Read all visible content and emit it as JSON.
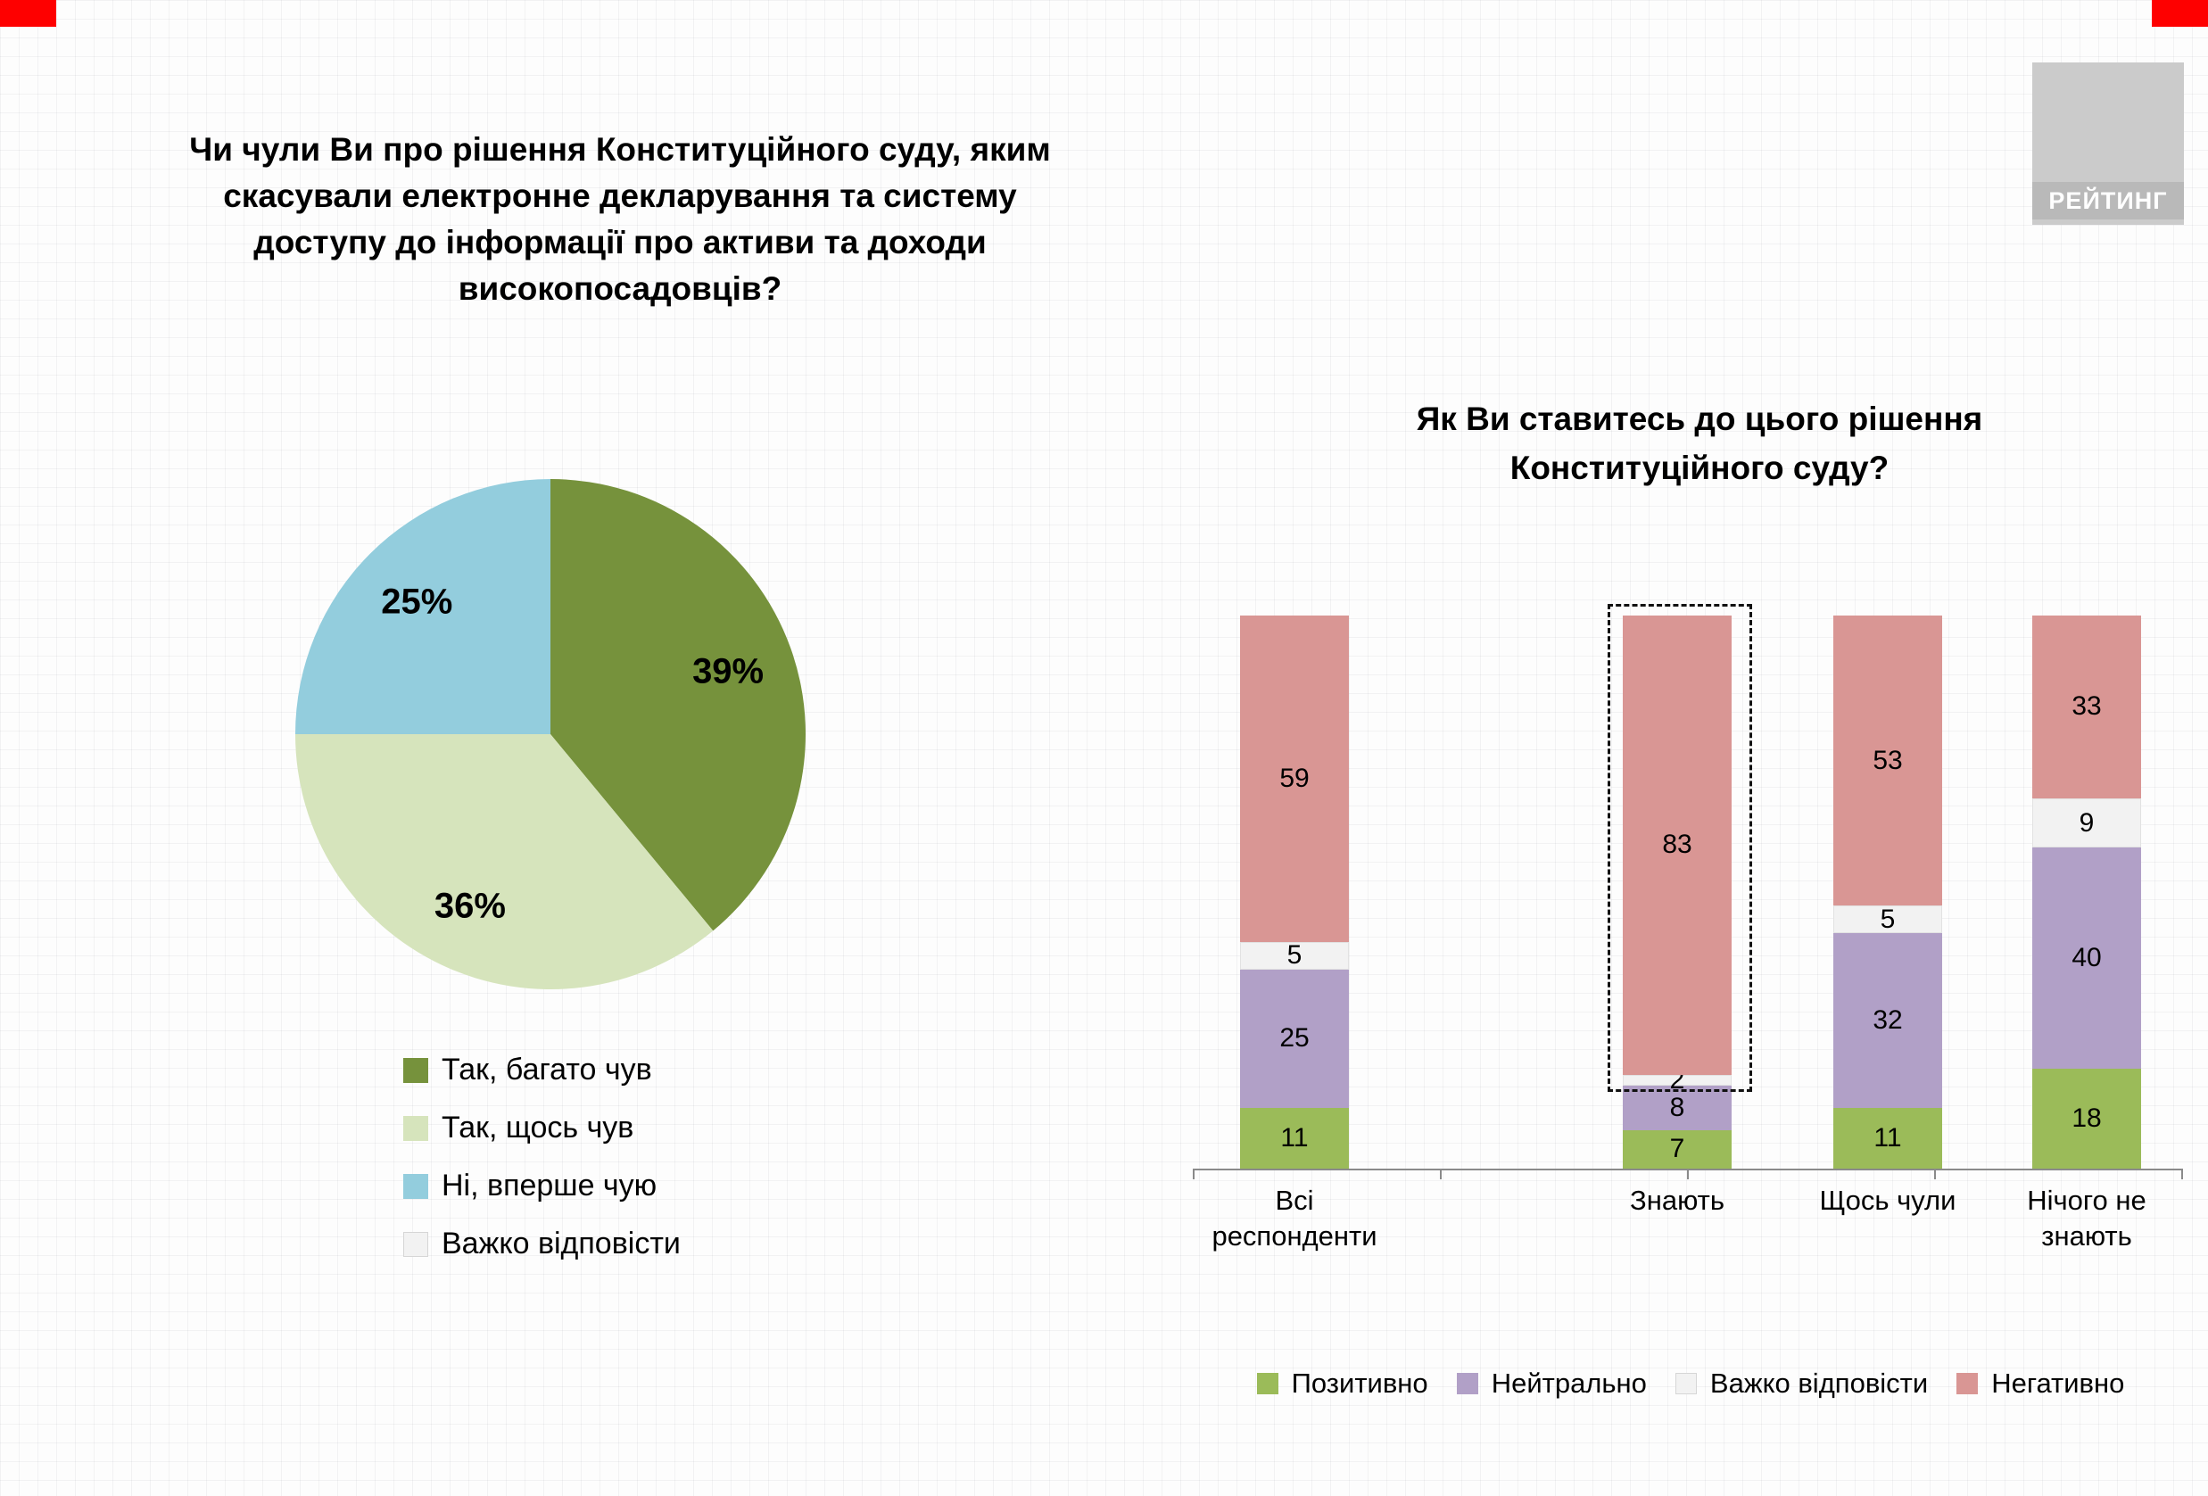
{
  "logo": {
    "text": "РЕЙТИНГ"
  },
  "chart_data": [
    {
      "type": "pie",
      "title": "Чи чули Ви про рішення Конституційного суду, яким скасували електронне декларування та систему доступу до інформації про активи та доходи високопосадовців?",
      "title_lines": [
        "Чи чули Ви про рішення Конституційного суду, яким",
        "скасували електронне декларування та систему",
        "доступу до інформації про активи та доходи",
        "високопосадовців?"
      ],
      "labels": [
        "Так, багато чув",
        "Так, щось чув",
        "Ні, вперше чую",
        "Важко відповісти"
      ],
      "values": [
        39,
        36,
        25,
        0
      ],
      "colors": [
        "#76923c",
        "#d6e4bc",
        "#93cddd",
        "#f2f2f2"
      ],
      "start_angle": "top",
      "direction": "clockwise",
      "legend_position": "bottom-left"
    },
    {
      "type": "bar",
      "stacked": true,
      "title": "Як Ви ставитесь до цього рішення Конституційного суду?",
      "title_lines": [
        "Як Ви ставитесь до цього рішення",
        "Конституційного суду?"
      ],
      "categories": [
        "Всі респонденти",
        "Знають",
        "Щось чули",
        "Нічого не знають"
      ],
      "series": [
        {
          "name": "Позитивно",
          "color": "#9bbb59",
          "values": [
            11,
            7,
            11,
            18
          ]
        },
        {
          "name": "Нейтрально",
          "color": "#b1a0c7",
          "values": [
            25,
            8,
            32,
            40
          ]
        },
        {
          "name": "Важко відповісти",
          "color": "#f2f2f2",
          "values": [
            5,
            2,
            5,
            9
          ]
        },
        {
          "name": "Негативно",
          "color": "#d99694",
          "values": [
            59,
            83,
            53,
            33
          ]
        }
      ],
      "ylim": [
        0,
        100
      ],
      "grid": false,
      "legend_position": "bottom",
      "highlight": {
        "category": "Знають",
        "series": "Негативно",
        "style": "dashed-outline"
      }
    }
  ]
}
